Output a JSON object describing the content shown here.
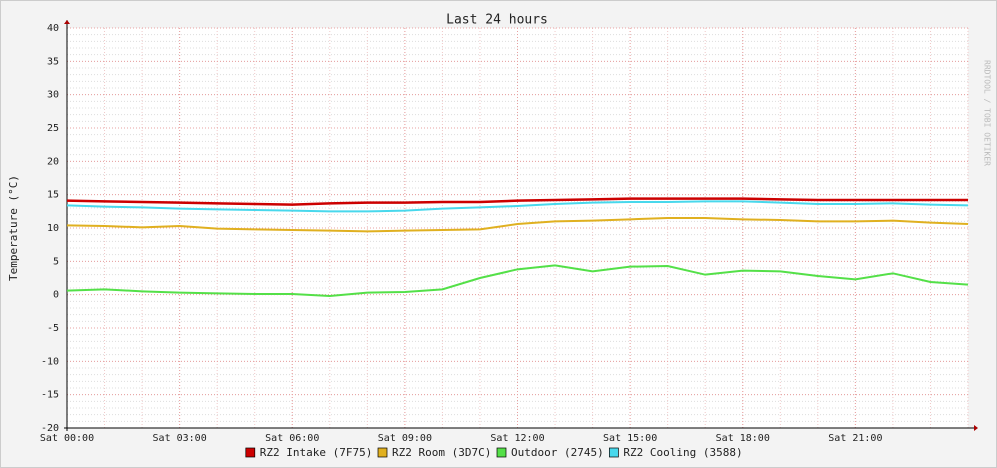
{
  "chart_data": {
    "type": "line",
    "title": "Last 24 hours",
    "y_label": "Temperature (°C)",
    "watermark": "RRDTOOL / TOBI OETIKER",
    "x": [
      0,
      1,
      2,
      3,
      4,
      5,
      6,
      7,
      8,
      9,
      10,
      11,
      12,
      13,
      14,
      15,
      16,
      17,
      18,
      19,
      20,
      21,
      22,
      23,
      24
    ],
    "xlim": [
      0,
      24
    ],
    "xticks": [
      {
        "value": 0,
        "label": "Sat 00:00"
      },
      {
        "value": 3,
        "label": "Sat 03:00"
      },
      {
        "value": 6,
        "label": "Sat 06:00"
      },
      {
        "value": 9,
        "label": "Sat 09:00"
      },
      {
        "value": 12,
        "label": "Sat 12:00"
      },
      {
        "value": 15,
        "label": "Sat 15:00"
      },
      {
        "value": 18,
        "label": "Sat 18:00"
      },
      {
        "value": 21,
        "label": "Sat 21:00"
      }
    ],
    "ylim": [
      -20,
      40
    ],
    "yticks": [
      -20,
      -15,
      -10,
      -5,
      0,
      5,
      10,
      15,
      20,
      25,
      30,
      35,
      40
    ],
    "grid": true,
    "legend": "bottom",
    "series": [
      {
        "name": "RZ2 Intake (7F75)",
        "color": "#cc0000",
        "values": [
          14.1,
          14,
          13.9,
          13.8,
          13.7,
          13.6,
          13.5,
          13.7,
          13.8,
          13.8,
          13.9,
          13.9,
          14.1,
          14.2,
          14.3,
          14.4,
          14.4,
          14.4,
          14.4,
          14.3,
          14.2,
          14.2,
          14.2,
          14.2,
          14.2
        ]
      },
      {
        "name": "RZ2 Room (3D7C)",
        "color": "#e0b020",
        "values": [
          10.4,
          10.3,
          10.1,
          10.3,
          9.9,
          9.8,
          9.7,
          9.6,
          9.5,
          9.6,
          9.7,
          9.8,
          10.6,
          11.0,
          11.1,
          11.3,
          11.5,
          11.5,
          11.3,
          11.2,
          11.0,
          11.0,
          11.1,
          10.8,
          10.6
        ]
      },
      {
        "name": "Outdoor (2745)",
        "color": "#54e048",
        "values": [
          0.6,
          0.8,
          0.5,
          0.3,
          0.2,
          0.1,
          0.1,
          -0.2,
          0.3,
          0.4,
          0.8,
          2.5,
          3.8,
          4.4,
          3.5,
          4.2,
          4.3,
          3.0,
          3.6,
          3.5,
          2.8,
          2.3,
          3.2,
          1.9,
          1.5
        ]
      },
      {
        "name": "RZ2 Cooling (3588)",
        "color": "#48d8ec",
        "values": [
          13.4,
          13.2,
          13.1,
          12.9,
          12.8,
          12.7,
          12.6,
          12.5,
          12.5,
          12.6,
          12.9,
          13.1,
          13.3,
          13.6,
          13.8,
          13.9,
          13.9,
          14.0,
          14.0,
          13.8,
          13.6,
          13.6,
          13.7,
          13.5,
          13.4
        ]
      }
    ]
  }
}
